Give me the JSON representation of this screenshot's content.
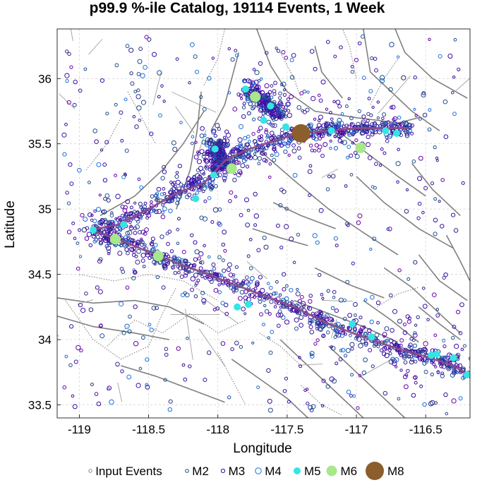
{
  "chart_data": {
    "type": "scatter",
    "title": "p99.9 %-ile Catalog, 19114 Events, 1 Week",
    "xlabel": "Longitude",
    "ylabel": "Latitude",
    "xlim": [
      -119.16,
      -116.18
    ],
    "ylim": [
      33.4,
      36.38
    ],
    "x_ticks": [
      -119,
      -118.5,
      -118,
      -117.5,
      -117,
      -116.5
    ],
    "x_tick_labels": [
      "-119",
      "-118.5",
      "-118",
      "-117.5",
      "-117",
      "-116.5"
    ],
    "y_ticks": [
      33.5,
      34,
      34.5,
      35,
      35.5,
      36
    ],
    "y_tick_labels": [
      "33.5",
      "34",
      "34.5",
      "35",
      "35.5",
      "36"
    ],
    "grid": true,
    "legend_position": "bottom",
    "legend": [
      {
        "name": "Input Events",
        "color": "#888888",
        "style": "small-open-circle"
      },
      {
        "name": "M2",
        "color": "#1f4e8c",
        "style": "open-circle"
      },
      {
        "name": "M3",
        "color": "#3a0ca3",
        "style": "open-circle"
      },
      {
        "name": "M4",
        "color": "#1e6fd9",
        "style": "open-circle"
      },
      {
        "name": "M5",
        "color": "#33e6e6",
        "style": "filled-circle"
      },
      {
        "name": "M6",
        "color": "#a6e88a",
        "style": "filled-circle"
      },
      {
        "name": "M8",
        "color": "#8b5e2c",
        "style": "filled-circle"
      }
    ],
    "fault_color": "#808080",
    "trace_color": "#8b4a8b",
    "approx_event_clusters": [
      {
        "name": "north trend",
        "points": [
          [
            -118.92,
            34.84
          ],
          [
            -118.72,
            34.88
          ],
          [
            -118.5,
            35.0
          ],
          [
            -118.3,
            35.12
          ],
          [
            -118.1,
            35.2
          ],
          [
            -117.95,
            35.37
          ],
          [
            -117.8,
            35.45
          ],
          [
            -117.6,
            35.52
          ],
          [
            -117.42,
            35.58
          ],
          [
            -117.2,
            35.6
          ],
          [
            -117.0,
            35.62
          ],
          [
            -116.8,
            35.62
          ],
          [
            -116.62,
            35.62
          ]
        ]
      },
      {
        "name": "south trend",
        "points": [
          [
            -118.92,
            34.84
          ],
          [
            -118.7,
            34.76
          ],
          [
            -118.45,
            34.65
          ],
          [
            -118.2,
            34.55
          ],
          [
            -117.95,
            34.45
          ],
          [
            -117.7,
            34.35
          ],
          [
            -117.45,
            34.25
          ],
          [
            -117.2,
            34.12
          ],
          [
            -116.95,
            34.02
          ],
          [
            -116.7,
            33.93
          ],
          [
            -116.5,
            33.87
          ],
          [
            -116.3,
            33.8
          ],
          [
            -116.18,
            33.72
          ]
        ]
      },
      {
        "name": "north-central cluster",
        "points": [
          [
            -117.78,
            35.92
          ],
          [
            -117.7,
            35.85
          ],
          [
            -117.62,
            35.78
          ],
          [
            -117.55,
            35.72
          ]
        ]
      },
      {
        "name": "west-central cluster",
        "points": [
          [
            -118.02,
            35.5
          ],
          [
            -118.0,
            35.42
          ],
          [
            -117.98,
            35.34
          ]
        ]
      }
    ],
    "highlighted_events": [
      {
        "magnitude": "M8",
        "lon": -117.4,
        "lat": 35.58
      },
      {
        "magnitude": "M6",
        "lon": -117.73,
        "lat": 35.86
      },
      {
        "magnitude": "M6",
        "lon": -116.97,
        "lat": 35.47
      },
      {
        "magnitude": "M6",
        "lon": -118.74,
        "lat": 34.77
      },
      {
        "magnitude": "M6",
        "lon": -118.43,
        "lat": 34.64
      },
      {
        "magnitude": "M6",
        "lon": -117.9,
        "lat": 35.31
      },
      {
        "magnitude": "M5",
        "lon": -118.02,
        "lat": 35.46
      },
      {
        "magnitude": "M5",
        "lon": -118.16,
        "lat": 35.08
      },
      {
        "magnitude": "M5",
        "lon": -118.03,
        "lat": 35.26
      },
      {
        "magnitude": "M5",
        "lon": -118.68,
        "lat": 34.88
      },
      {
        "magnitude": "M5",
        "lon": -118.9,
        "lat": 34.84
      },
      {
        "magnitude": "M5",
        "lon": -117.62,
        "lat": 35.79
      },
      {
        "magnitude": "M5",
        "lon": -117.67,
        "lat": 35.68
      },
      {
        "magnitude": "M5",
        "lon": -117.8,
        "lat": 35.92
      },
      {
        "magnitude": "M5",
        "lon": -117.51,
        "lat": 35.63
      },
      {
        "magnitude": "M5",
        "lon": -117.18,
        "lat": 35.6
      },
      {
        "magnitude": "M5",
        "lon": -116.79,
        "lat": 35.6
      },
      {
        "magnitude": "M5",
        "lon": -116.71,
        "lat": 35.58
      },
      {
        "magnitude": "M5",
        "lon": -117.86,
        "lat": 34.25
      },
      {
        "magnitude": "M5",
        "lon": -116.89,
        "lat": 34.02
      },
      {
        "magnitude": "M5",
        "lon": -117.03,
        "lat": 34.12
      },
      {
        "magnitude": "M5",
        "lon": -116.42,
        "lat": 33.89
      },
      {
        "magnitude": "M5",
        "lon": -116.46,
        "lat": 33.88
      },
      {
        "magnitude": "M5",
        "lon": -116.3,
        "lat": 33.86
      },
      {
        "magnitude": "M5",
        "lon": -116.2,
        "lat": 33.73
      },
      {
        "magnitude": "M5",
        "lon": -117.78,
        "lat": 34.27
      }
    ]
  }
}
